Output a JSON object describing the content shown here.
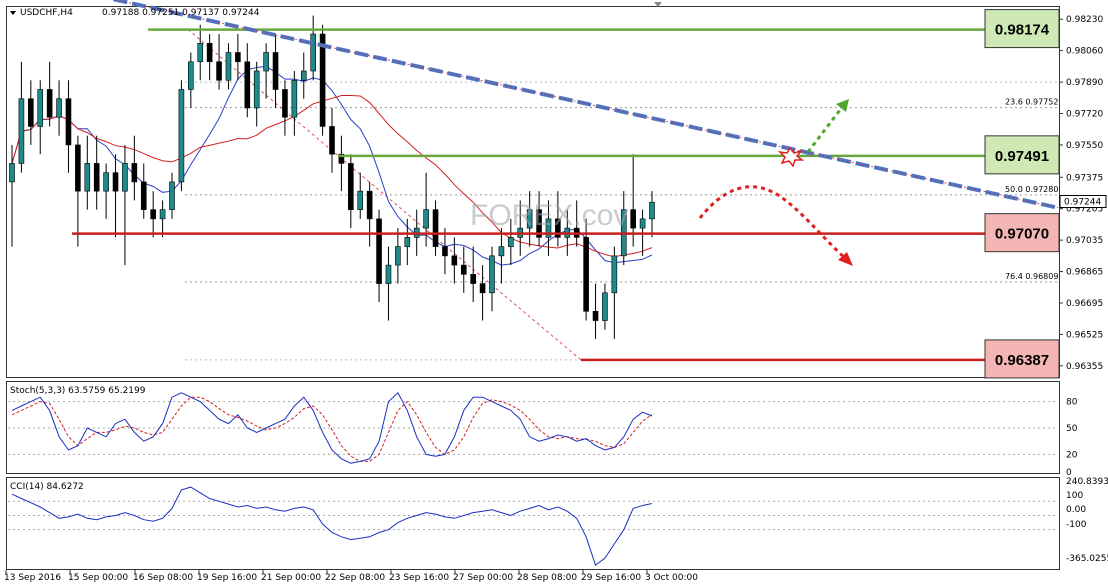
{
  "header": {
    "symbol_label": "USDCHF,H4",
    "ohlc_label": "0.97188 0.97251 0.97137 0.97244",
    "arrow_icon": "triangle-down-icon"
  },
  "watermark": "FOREX.cov",
  "chart_data": [
    {
      "type": "candlestick",
      "title": "USDCHF,H4",
      "y_ticks": [
        "0.98230",
        "0.98060",
        "0.97890",
        "0.97720",
        "0.97550",
        "0.97375",
        "0.97205",
        "0.97035",
        "0.96865",
        "0.96695",
        "0.96525",
        "0.96355"
      ],
      "ylim": [
        0.963,
        0.9828
      ],
      "last_price": "0.97244",
      "x_ticks": [
        "13 Sep 2016",
        "15 Sep 00:00",
        "16 Sep 08:00",
        "19 Sep 16:00",
        "21 Sep 00:00",
        "22 Sep 08:00",
        "23 Sep 16:00",
        "27 Sep 00:00",
        "28 Sep 08:00",
        "29 Sep 16:00",
        "3 Oct 00:00"
      ],
      "levels": [
        {
          "label": "0.98174",
          "value": 0.98174,
          "color": "#6aa83f",
          "box": "#cfe9b4"
        },
        {
          "label": "0.97491",
          "value": 0.97491,
          "color": "#6aa83f",
          "box": "#cfe9b4"
        },
        {
          "label": "0.97070",
          "value": 0.9707,
          "color": "#c81e1e",
          "box": "#f4b5b5"
        },
        {
          "label": "0.96387",
          "value": 0.96387,
          "color": "#c81e1e",
          "box": "#f4b5b5"
        }
      ],
      "fib_levels": [
        {
          "label": "23.6  0.97752",
          "value": 0.97752
        },
        {
          "label": "50.0  0.97280",
          "value": 0.9728
        },
        {
          "label": "76.4  0.96809",
          "value": 0.96809
        }
      ],
      "trendline": {
        "from": 0.9836,
        "to": 0.9721,
        "color": "#4a78c8"
      },
      "candles": [
        [
          0.9735,
          0.9755,
          0.97,
          0.9745
        ],
        [
          0.9745,
          0.98,
          0.974,
          0.978
        ],
        [
          0.978,
          0.979,
          0.9755,
          0.9765
        ],
        [
          0.9765,
          0.979,
          0.975,
          0.9785
        ],
        [
          0.9785,
          0.98,
          0.9765,
          0.977
        ],
        [
          0.977,
          0.979,
          0.976,
          0.978
        ],
        [
          0.978,
          0.979,
          0.974,
          0.9755
        ],
        [
          0.9755,
          0.976,
          0.97,
          0.973
        ],
        [
          0.973,
          0.976,
          0.972,
          0.9745
        ],
        [
          0.9745,
          0.976,
          0.972,
          0.973
        ],
        [
          0.973,
          0.9745,
          0.9715,
          0.974
        ],
        [
          0.974,
          0.975,
          0.9705,
          0.973
        ],
        [
          0.973,
          0.9755,
          0.969,
          0.9745
        ],
        [
          0.9745,
          0.976,
          0.9725,
          0.9735
        ],
        [
          0.9735,
          0.9745,
          0.9715,
          0.972
        ],
        [
          0.972,
          0.973,
          0.9705,
          0.9715
        ],
        [
          0.9715,
          0.9725,
          0.9705,
          0.972
        ],
        [
          0.972,
          0.974,
          0.9715,
          0.9735
        ],
        [
          0.9735,
          0.979,
          0.973,
          0.9785
        ],
        [
          0.9785,
          0.9805,
          0.9775,
          0.98
        ],
        [
          0.98,
          0.982,
          0.979,
          0.981
        ],
        [
          0.981,
          0.9815,
          0.979,
          0.98
        ],
        [
          0.98,
          0.9815,
          0.9785,
          0.979
        ],
        [
          0.979,
          0.981,
          0.9785,
          0.9805
        ],
        [
          0.9805,
          0.9815,
          0.979,
          0.98
        ],
        [
          0.98,
          0.981,
          0.977,
          0.9775
        ],
        [
          0.9775,
          0.98,
          0.9765,
          0.9795
        ],
        [
          0.9795,
          0.981,
          0.978,
          0.9805
        ],
        [
          0.9805,
          0.9815,
          0.9775,
          0.9785
        ],
        [
          0.9785,
          0.979,
          0.976,
          0.977
        ],
        [
          0.977,
          0.9795,
          0.976,
          0.979
        ],
        [
          0.979,
          0.9805,
          0.978,
          0.9795
        ],
        [
          0.9795,
          0.9825,
          0.979,
          0.9815
        ],
        [
          0.9815,
          0.982,
          0.976,
          0.9765
        ],
        [
          0.9765,
          0.9775,
          0.974,
          0.975
        ],
        [
          0.975,
          0.976,
          0.973,
          0.9745
        ],
        [
          0.9745,
          0.975,
          0.971,
          0.972
        ],
        [
          0.972,
          0.974,
          0.9715,
          0.973
        ],
        [
          0.973,
          0.9735,
          0.97,
          0.9715
        ],
        [
          0.9715,
          0.972,
          0.967,
          0.968
        ],
        [
          0.968,
          0.97,
          0.966,
          0.969
        ],
        [
          0.969,
          0.971,
          0.968,
          0.97
        ],
        [
          0.97,
          0.9715,
          0.969,
          0.9705
        ],
        [
          0.9705,
          0.972,
          0.9695,
          0.971
        ],
        [
          0.971,
          0.974,
          0.97,
          0.972
        ],
        [
          0.972,
          0.9725,
          0.9695,
          0.97
        ],
        [
          0.97,
          0.971,
          0.9685,
          0.9695
        ],
        [
          0.9695,
          0.9705,
          0.968,
          0.969
        ],
        [
          0.969,
          0.97,
          0.9675,
          0.9685
        ],
        [
          0.9685,
          0.97,
          0.967,
          0.968
        ],
        [
          0.968,
          0.969,
          0.966,
          0.9675
        ],
        [
          0.9675,
          0.97,
          0.9665,
          0.9695
        ],
        [
          0.9695,
          0.971,
          0.968,
          0.97
        ],
        [
          0.97,
          0.9715,
          0.969,
          0.9705
        ],
        [
          0.9705,
          0.9725,
          0.9695,
          0.971
        ],
        [
          0.971,
          0.973,
          0.97,
          0.972
        ],
        [
          0.972,
          0.973,
          0.97,
          0.9705
        ],
        [
          0.9705,
          0.9725,
          0.9695,
          0.9715
        ],
        [
          0.9715,
          0.973,
          0.97,
          0.9705
        ],
        [
          0.9705,
          0.972,
          0.9695,
          0.971
        ],
        [
          0.971,
          0.9725,
          0.97,
          0.9705
        ],
        [
          0.9705,
          0.9715,
          0.966,
          0.9665
        ],
        [
          0.9665,
          0.968,
          0.965,
          0.966
        ],
        [
          0.966,
          0.968,
          0.9655,
          0.9675
        ],
        [
          0.9675,
          0.97,
          0.965,
          0.9695
        ],
        [
          0.9695,
          0.973,
          0.969,
          0.972
        ],
        [
          0.972,
          0.975,
          0.97,
          0.971
        ],
        [
          0.971,
          0.972,
          0.9695,
          0.9715
        ],
        [
          0.9715,
          0.973,
          0.9705,
          0.9724
        ]
      ],
      "stoch": {
        "label": "Stoch(5,3,3) 63.5759 65.2199",
        "ticks": [
          "80",
          "50",
          "20",
          "0"
        ],
        "ylim": [
          0,
          100
        ],
        "k": [
          70,
          75,
          80,
          85,
          70,
          40,
          25,
          30,
          50,
          45,
          40,
          55,
          60,
          45,
          35,
          40,
          55,
          85,
          90,
          85,
          80,
          70,
          60,
          55,
          65,
          50,
          45,
          50,
          55,
          60,
          75,
          85,
          70,
          45,
          25,
          15,
          10,
          12,
          15,
          35,
          80,
          90,
          70,
          40,
          20,
          18,
          20,
          40,
          70,
          85,
          85,
          80,
          75,
          70,
          60,
          40,
          35,
          38,
          42,
          40,
          35,
          38,
          30,
          25,
          28,
          40,
          60,
          68,
          63.58
        ],
        "d": [
          65,
          70,
          75,
          80,
          78,
          60,
          40,
          30,
          38,
          45,
          45,
          48,
          52,
          50,
          45,
          42,
          45,
          60,
          75,
          85,
          85,
          80,
          72,
          65,
          62,
          58,
          52,
          48,
          50,
          55,
          62,
          72,
          75,
          65,
          48,
          30,
          18,
          12,
          12,
          20,
          45,
          70,
          80,
          65,
          45,
          28,
          20,
          25,
          40,
          62,
          78,
          82,
          80,
          76,
          70,
          60,
          48,
          40,
          38,
          40,
          38,
          37,
          35,
          30,
          28,
          32,
          45,
          58,
          65.22
        ]
      },
      "cci": {
        "label": "CCI(14) 84.6272",
        "ticks": [
          "240.8393",
          "100",
          "0.00",
          "-100",
          "-365.0255"
        ],
        "ylim": [
          -370,
          250
        ],
        "values": [
          150,
          120,
          90,
          60,
          20,
          -20,
          -10,
          10,
          -20,
          -30,
          -10,
          0,
          20,
          0,
          -30,
          -40,
          -20,
          50,
          180,
          200,
          160,
          120,
          100,
          80,
          60,
          70,
          50,
          60,
          40,
          30,
          50,
          60,
          40,
          -60,
          -120,
          -150,
          -170,
          -160,
          -150,
          -120,
          -100,
          -50,
          -20,
          0,
          20,
          10,
          -10,
          -20,
          0,
          20,
          30,
          40,
          20,
          0,
          30,
          50,
          70,
          40,
          60,
          30,
          -20,
          -150,
          -350,
          -300,
          -200,
          -100,
          50,
          70,
          84.63
        ]
      }
    }
  ]
}
